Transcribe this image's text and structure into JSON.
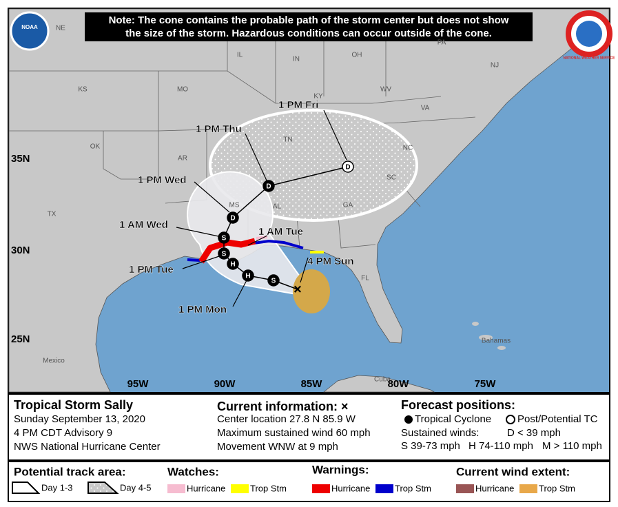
{
  "note": [
    "Note: The cone contains the probable path of the storm center but does not show",
    "the size of the storm. Hazardous conditions can occur outside of the cone."
  ],
  "logos": {
    "noaa": "NOAA",
    "nws": "NATIONAL WEATHER SERVICE"
  },
  "map": {
    "regions": [
      "NE",
      "IL",
      "IN",
      "OH",
      "PA",
      "NJ",
      "KS",
      "MO",
      "KY",
      "WV",
      "VA",
      "OK",
      "AR",
      "TN",
      "NC",
      "MS",
      "AL",
      "GA",
      "SC",
      "TX",
      "FL",
      "Bahamas",
      "Cuba",
      "Mexico"
    ],
    "lat_labels": [
      "35N",
      "30N",
      "25N"
    ],
    "lon_labels": [
      "95W",
      "90W",
      "85W",
      "80W",
      "75W"
    ],
    "times": [
      "1 PM Fri",
      "1 PM Thu",
      "1 PM Wed",
      "1 AM Wed",
      "1 AM Tue",
      "1 PM Tue",
      "4 PM Sun",
      "1 PM Mon"
    ],
    "points": [
      "D",
      "D",
      "D",
      "S",
      "S",
      "S",
      "H",
      "H"
    ]
  },
  "storm": {
    "name": "Tropical Storm Sally",
    "lines": [
      "Sunday September 13, 2020",
      "4 PM CDT Advisory 9",
      "NWS National Hurricane Center"
    ]
  },
  "current": {
    "title": "Current information: ×",
    "lines": [
      "Center location 27.8 N 85.9 W",
      "Maximum sustained wind 60 mph",
      "Movement WNW at 9 mph"
    ]
  },
  "forecast": {
    "title": "Forecast positions:",
    "tropical": "Tropical Cyclone",
    "post": "Post/Potential TC",
    "winds": "Sustained winds:",
    "d": "D < 39 mph",
    "s": "S 39-73 mph",
    "h": "H 74-110 mph",
    "m": "M > 110 mph"
  },
  "legend": {
    "track": "Potential track area:",
    "day13": "Day 1-3",
    "day45": "Day 4-5",
    "watches": "Watches:",
    "watch_hu": "Hurricane",
    "watch_ts": "Trop Stm",
    "warnings": "Warnings:",
    "warn_hu": "Hurricane",
    "warn_ts": "Trop Stm",
    "wind": "Current wind extent:",
    "wind_hu": "Hurricane",
    "wind_ts": "Trop Stm"
  }
}
